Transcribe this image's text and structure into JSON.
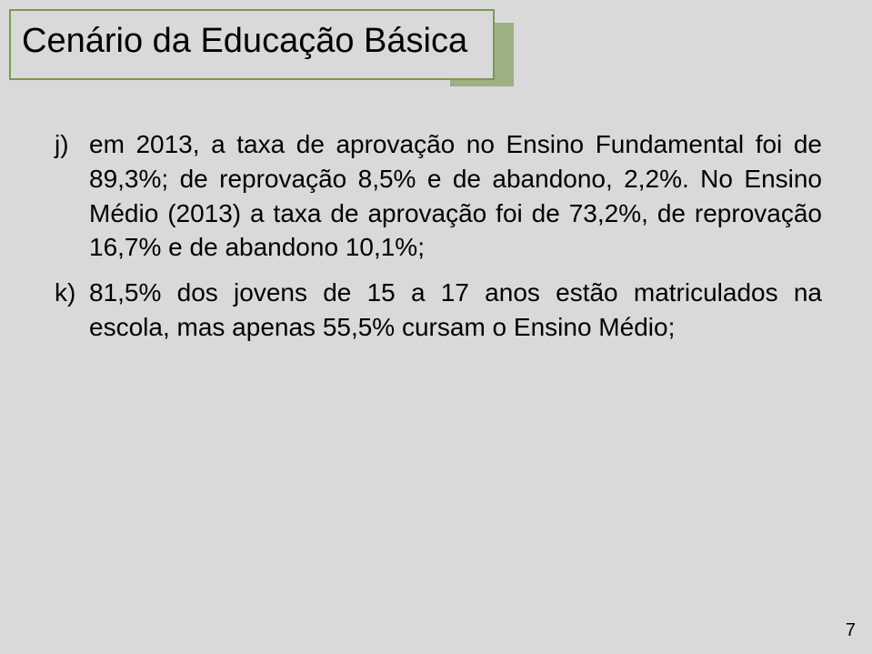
{
  "title": "Cenário da Educação Básica",
  "accent_color": "#9cb084",
  "title_border_color": "#7a9a4e",
  "background_color": "#d9d9d9",
  "text_color": "#000000",
  "title_fontsize": 38,
  "body_fontsize": 28,
  "page_number": "7",
  "items": [
    {
      "marker": "j)",
      "text": "em 2013, a taxa de aprovação no Ensino Fundamental foi de 89,3%; de reprovação 8,5% e de abandono, 2,2%. No Ensino Médio (2013) a taxa de aprovação foi de 73,2%, de reprovação 16,7% e de abandono 10,1%;"
    },
    {
      "marker": "k)",
      "text": "81,5% dos jovens de 15 a 17 anos estão matriculados na escola, mas apenas 55,5% cursam o Ensino Médio;"
    }
  ]
}
